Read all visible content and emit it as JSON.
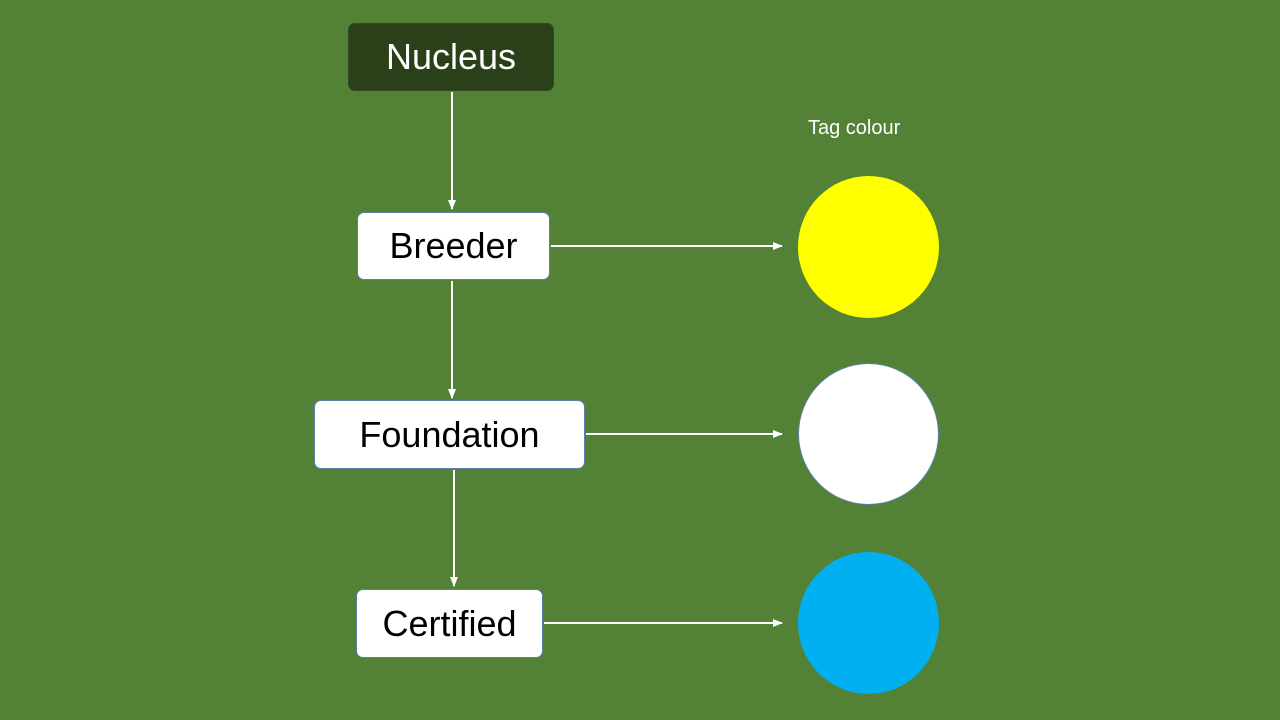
{
  "colors": {
    "background": "#538135",
    "nucleus_fill": "#2a4019",
    "nucleus_text": "#ffffff",
    "node_fill": "#ffffff",
    "node_text": "#000000",
    "connector": "#ffffff",
    "label_text": "#ffffff"
  },
  "hierarchy": {
    "top": {
      "label": "Nucleus"
    },
    "levels": [
      {
        "label": "Breeder",
        "tag_colour_name": "yellow",
        "tag_colour": "#ffff00"
      },
      {
        "label": "Foundation",
        "tag_colour_name": "white",
        "tag_colour": "#ffffff"
      },
      {
        "label": "Certified",
        "tag_colour_name": "light-blue",
        "tag_colour": "#00b0f0"
      }
    ]
  },
  "legend": {
    "tag_colour_title": "Tag colour"
  }
}
